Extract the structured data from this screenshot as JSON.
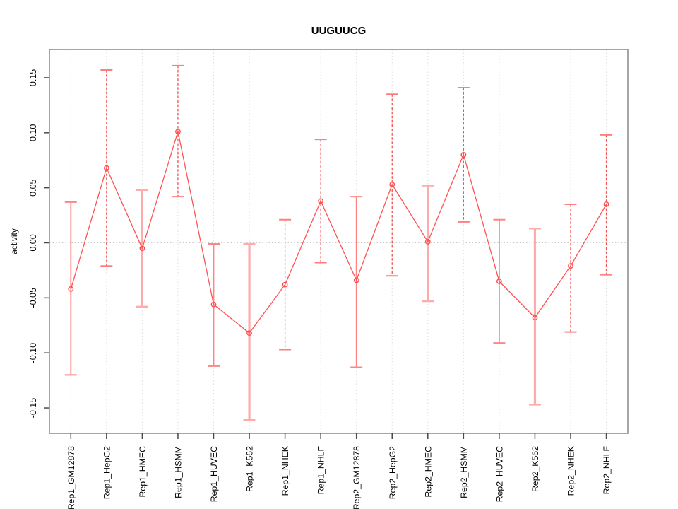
{
  "window": {
    "background": "#ffffff"
  },
  "chart_data": {
    "type": "line",
    "title": "UUGUUCG",
    "xlabel": "",
    "ylabel": "activity",
    "ylim": [
      -0.173,
      0.176
    ],
    "yticks": [
      0.15,
      0.1,
      0.05,
      0.0,
      -0.05,
      -0.1,
      -0.15
    ],
    "ytick_labels": [
      "0.15",
      "0.10",
      "0.05",
      "0.00",
      "-0.05",
      "-0.10",
      "-0.15"
    ],
    "grid": "vertical dotted gridline at every category; dotted horizontal line at y=0; no legend",
    "legend": "none",
    "categories": [
      "Rep1_GM12878",
      "Rep1_HepG2",
      "Rep1_HMEC",
      "Rep1_HSMM",
      "Rep1_HUVEC",
      "Rep1_K562",
      "Rep1_NHEK",
      "Rep1_NHLF",
      "Rep2_GM12878",
      "Rep2_HepG2",
      "Rep2_HMEC",
      "Rep2_HSMM",
      "Rep2_HUVEC",
      "Rep2_K562",
      "Rep2_NHEK",
      "Rep2_NHLF"
    ],
    "series": [
      {
        "name": "activity",
        "values": [
          -0.042,
          0.068,
          -0.005,
          0.101,
          -0.056,
          -0.082,
          -0.038,
          0.038,
          -0.034,
          0.053,
          0.001,
          0.08,
          -0.035,
          -0.068,
          -0.021,
          0.035
        ],
        "error_upper": [
          0.037,
          0.157,
          0.048,
          0.161,
          -0.001,
          -0.001,
          0.021,
          0.094,
          0.042,
          0.135,
          0.052,
          0.141,
          0.021,
          0.013,
          0.035,
          0.098
        ],
        "error_lower": [
          -0.12,
          -0.021,
          -0.058,
          0.042,
          -0.112,
          -0.161,
          -0.097,
          -0.018,
          -0.113,
          -0.03,
          -0.053,
          0.019,
          -0.091,
          -0.147,
          -0.081,
          -0.029
        ]
      }
    ],
    "point_marker": "open-circle",
    "point_styles": [
      "solid",
      "dashed",
      "thick",
      "dashed",
      "solid",
      "thick",
      "dashed",
      "dashed",
      "solid",
      "dashed",
      "thick",
      "dashed",
      "solid",
      "thick",
      "dashed",
      "dashed"
    ],
    "colors": {
      "line": "#ff5252",
      "marker": "#ff4d4d",
      "errorbar_solid": "#ff8585",
      "errorbar_thick": "#ffabab",
      "errorbar_dashed": "#f25252",
      "grid": "#dcdcdc",
      "zero_line": "#c8c8c8",
      "frame": "#888888",
      "tick": "#4a4a4a",
      "text": "#000000"
    }
  }
}
